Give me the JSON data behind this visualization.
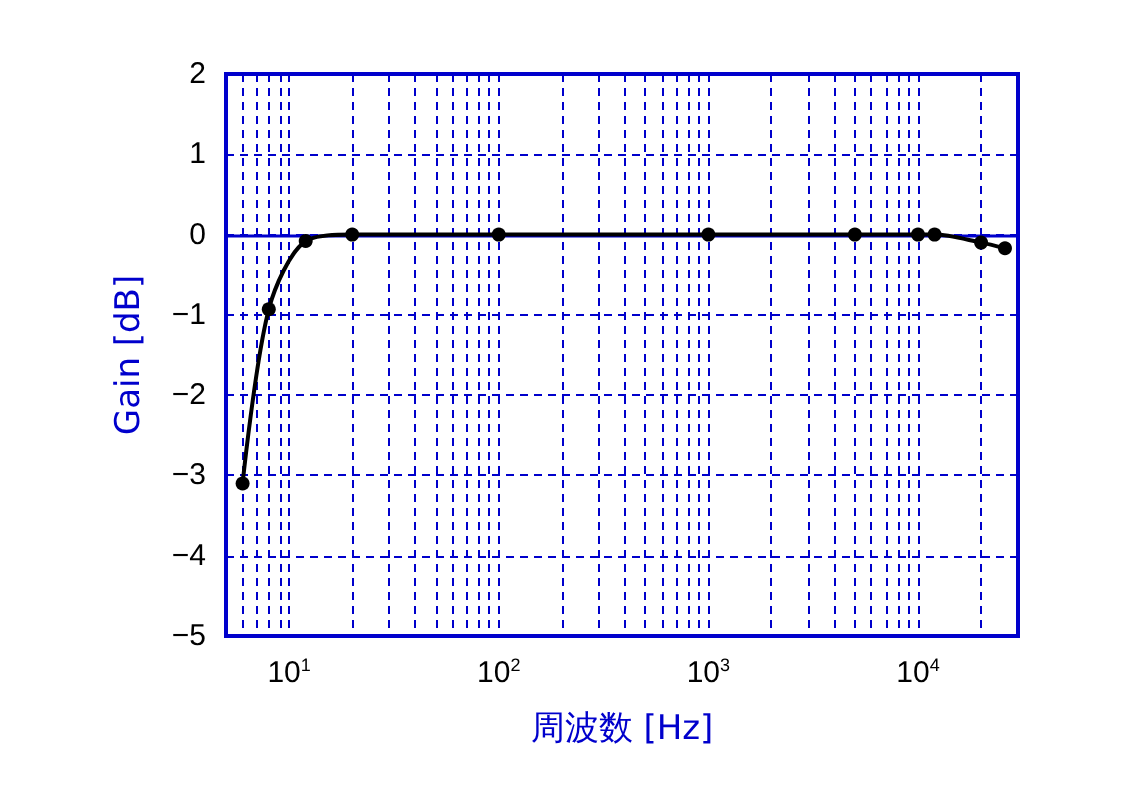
{
  "chart_data": {
    "type": "line",
    "xlabel": "周波数 [Hz]",
    "ylabel": "Gain [dB]",
    "x": [
      6,
      8,
      12,
      20,
      100,
      1000,
      5000,
      10000,
      12000,
      20000,
      26000
    ],
    "series": [
      {
        "color": "#000000",
        "values": [
          -3.1,
          -0.93,
          -0.08,
          0,
          0,
          0,
          0,
          0,
          0,
          -0.1,
          -0.17
        ]
      }
    ],
    "log": "x",
    "xlim": [
      5,
      30000
    ],
    "xticks": [
      {
        "value": 10,
        "label": "10$^{1}$"
      },
      {
        "value": 100,
        "label": "10$^{2}$"
      },
      {
        "value": 1000,
        "label": "10$^{3}$"
      },
      {
        "value": 10000,
        "label": "10$^{4}$"
      }
    ],
    "ylim": [
      -5,
      2
    ],
    "yticks": [
      -5,
      -4,
      -3,
      -2,
      -1,
      0,
      1,
      2
    ],
    "ref_lines": [
      {
        "axis": "y",
        "value": 0,
        "color": "#0000cc",
        "line_style": "solid"
      }
    ],
    "grid": true,
    "marker": "circle",
    "line_style": "solid"
  }
}
